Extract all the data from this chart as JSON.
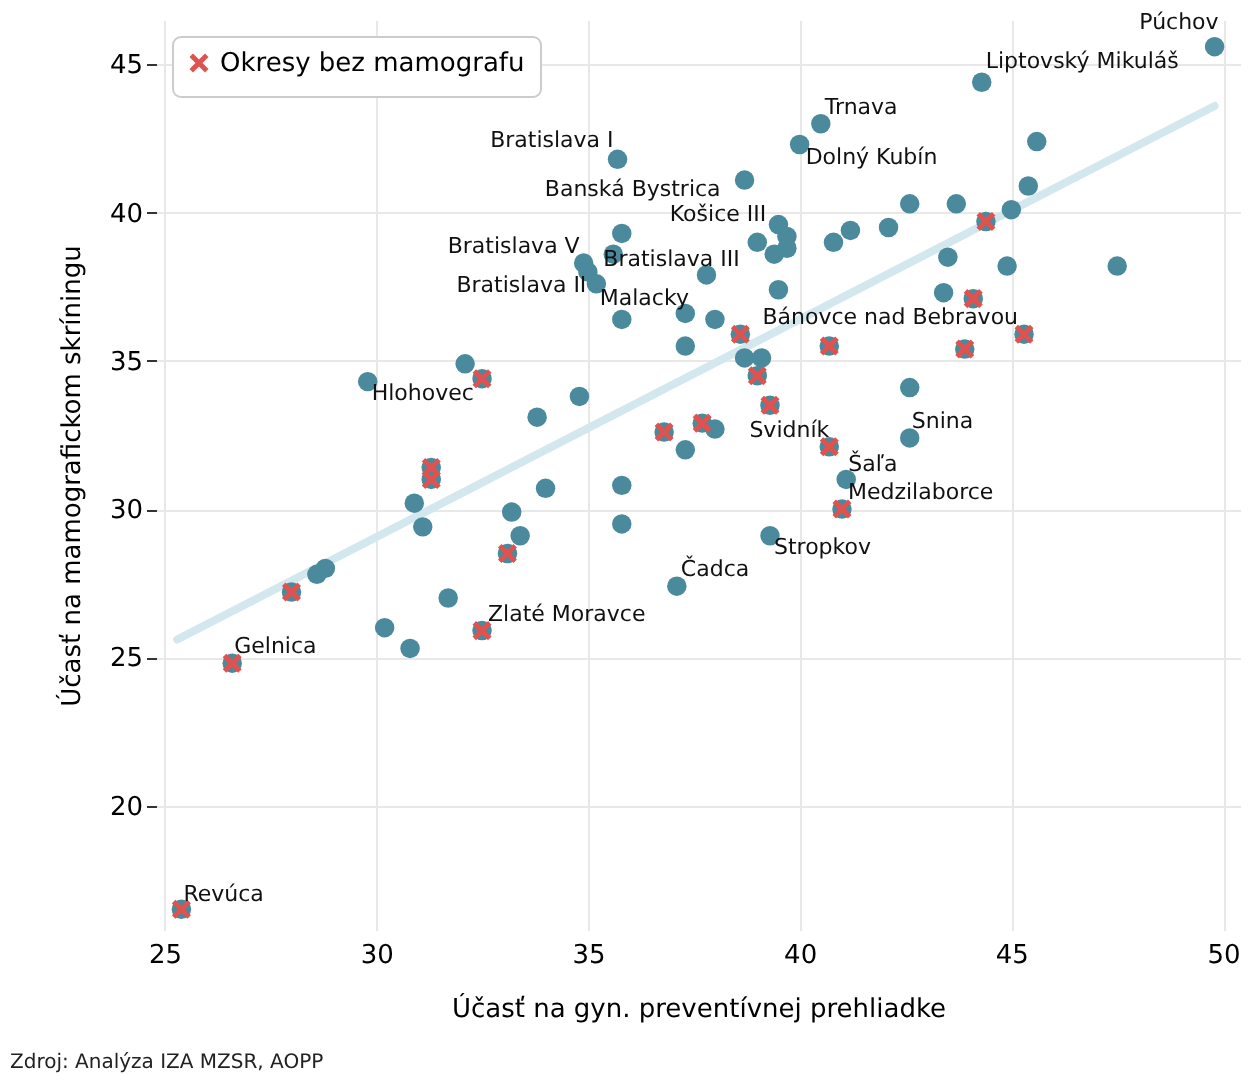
{
  "chart_data": {
    "type": "scatter",
    "xlabel": "Účasť na gyn. preventívnej prehliadke",
    "ylabel": "Účasť na mamografickom skríningu",
    "xlim": [
      24.8,
      50.4
    ],
    "ylim": [
      15.8,
      46.5
    ],
    "xticks": [
      25,
      30,
      35,
      40,
      45,
      50
    ],
    "yticks": [
      20,
      25,
      30,
      35,
      40,
      45
    ],
    "grid": true,
    "legend": "top left",
    "series": [
      {
        "type": "scatter",
        "marker": "circle",
        "color": "#4a8a9c",
        "x": [
          49.8,
          44.3,
          40.5,
          40.0,
          45.6,
          45.4,
          45.0,
          35.7,
          38.7,
          42.6,
          43.7,
          42.1,
          41.2,
          40.8,
          39.5,
          39.7,
          39.0,
          39.4,
          39.7,
          35.8,
          35.6,
          34.9,
          35.0,
          35.2,
          37.8,
          39.5,
          35.8,
          37.3,
          38.0,
          37.3,
          38.7,
          39.1,
          43.5,
          44.9,
          47.5,
          43.4,
          42.6,
          42.6,
          41.1,
          39.3,
          37.1,
          35.8,
          35.8,
          34.8,
          34.0,
          37.3,
          38.0,
          29.8,
          32.1,
          33.8,
          30.9,
          31.1,
          33.2,
          33.4,
          28.6,
          28.8,
          31.7,
          30.2,
          30.8,
          32.5,
          31.3,
          31.3,
          33.1,
          28.0,
          26.6,
          32.5,
          25.4,
          38.6,
          40.7,
          39.0,
          39.3,
          36.8,
          37.7,
          40.7,
          41.0,
          44.4,
          44.1,
          45.3,
          43.9
        ],
        "values": [
          45.6,
          44.4,
          43.0,
          42.3,
          42.4,
          40.9,
          40.1,
          41.8,
          41.1,
          40.3,
          40.3,
          39.5,
          39.4,
          39.0,
          39.6,
          39.2,
          39.0,
          38.6,
          38.8,
          39.3,
          38.6,
          38.3,
          38.0,
          37.6,
          37.9,
          37.4,
          36.4,
          36.6,
          36.4,
          35.5,
          35.1,
          35.1,
          38.5,
          38.2,
          38.2,
          37.3,
          34.1,
          32.4,
          31.0,
          29.1,
          27.4,
          30.8,
          29.5,
          33.8,
          30.7,
          32.0,
          32.7,
          34.3,
          34.9,
          33.1,
          30.2,
          29.4,
          29.9,
          29.1,
          27.8,
          28.0,
          27.0,
          26.0,
          25.3,
          34.4,
          31.4,
          31.0,
          28.5,
          27.2,
          24.8,
          25.9,
          16.5,
          35.9,
          35.5,
          34.5,
          33.5,
          32.6,
          32.9,
          32.1,
          30.0,
          39.7,
          37.1,
          35.9,
          35.4
        ]
      },
      {
        "type": "scatter",
        "marker": "cross",
        "name": "Okresy bez mamografu",
        "color": "#e0524f",
        "x": [
          32.5,
          31.3,
          31.3,
          33.1,
          28.0,
          26.6,
          32.5,
          25.4,
          38.6,
          40.7,
          39.0,
          39.3,
          36.8,
          37.7,
          40.7,
          41.0,
          44.4,
          44.1,
          45.3,
          43.9
        ],
        "values": [
          34.4,
          31.4,
          31.0,
          28.5,
          27.2,
          24.8,
          25.9,
          16.5,
          35.9,
          35.5,
          34.5,
          33.5,
          32.6,
          32.9,
          32.1,
          30.0,
          39.7,
          37.1,
          35.9,
          35.4
        ]
      },
      {
        "type": "line",
        "color": "#d3e7ef",
        "x": [
          25.3,
          49.8
        ],
        "values": [
          25.6,
          43.6
        ]
      }
    ],
    "annotations": [
      {
        "text": "Púchov",
        "x": 49.8,
        "y": 45.6
      },
      {
        "text": "Liptovský Mikuláš",
        "x": 44.3,
        "y": 44.4
      },
      {
        "text": "Trnava",
        "x": 40.5,
        "y": 43.0
      },
      {
        "text": "Dolný Kubín",
        "x": 40.0,
        "y": 42.3
      },
      {
        "text": "Bratislava I",
        "x": 35.7,
        "y": 41.8
      },
      {
        "text": "Banská Bystrica",
        "x": 38.7,
        "y": 41.1
      },
      {
        "text": "Košice III",
        "x": 35.8,
        "y": 39.3
      },
      {
        "text": "Bratislava V",
        "x": 34.9,
        "y": 38.3
      },
      {
        "text": "Bratislava III",
        "x": 35.6,
        "y": 38.6
      },
      {
        "text": "Bratislava II",
        "x": 35.2,
        "y": 37.6
      },
      {
        "text": "Malacky",
        "x": 35.8,
        "y": 36.4
      },
      {
        "text": "Bánovce nad Bebravou",
        "x": 45.3,
        "y": 35.9
      },
      {
        "text": "Hlohovec",
        "x": 29.8,
        "y": 34.3
      },
      {
        "text": "Snina",
        "x": 42.6,
        "y": 32.4
      },
      {
        "text": "Svidník",
        "x": 40.7,
        "y": 32.1
      },
      {
        "text": "Šaľa",
        "x": 41.1,
        "y": 31.0
      },
      {
        "text": "Medzilaborce",
        "x": 41.0,
        "y": 30.0
      },
      {
        "text": "Stropkov",
        "x": 39.3,
        "y": 29.1
      },
      {
        "text": "Čadca",
        "x": 37.1,
        "y": 27.4
      },
      {
        "text": "Zlaté Moravce",
        "x": 32.5,
        "y": 25.9
      },
      {
        "text": "Gelnica",
        "x": 26.6,
        "y": 24.8
      },
      {
        "text": "Revúca",
        "x": 25.4,
        "y": 16.5
      },
      "Zdroj: Analýza IZA MZSR, AOPP"
    ]
  }
}
